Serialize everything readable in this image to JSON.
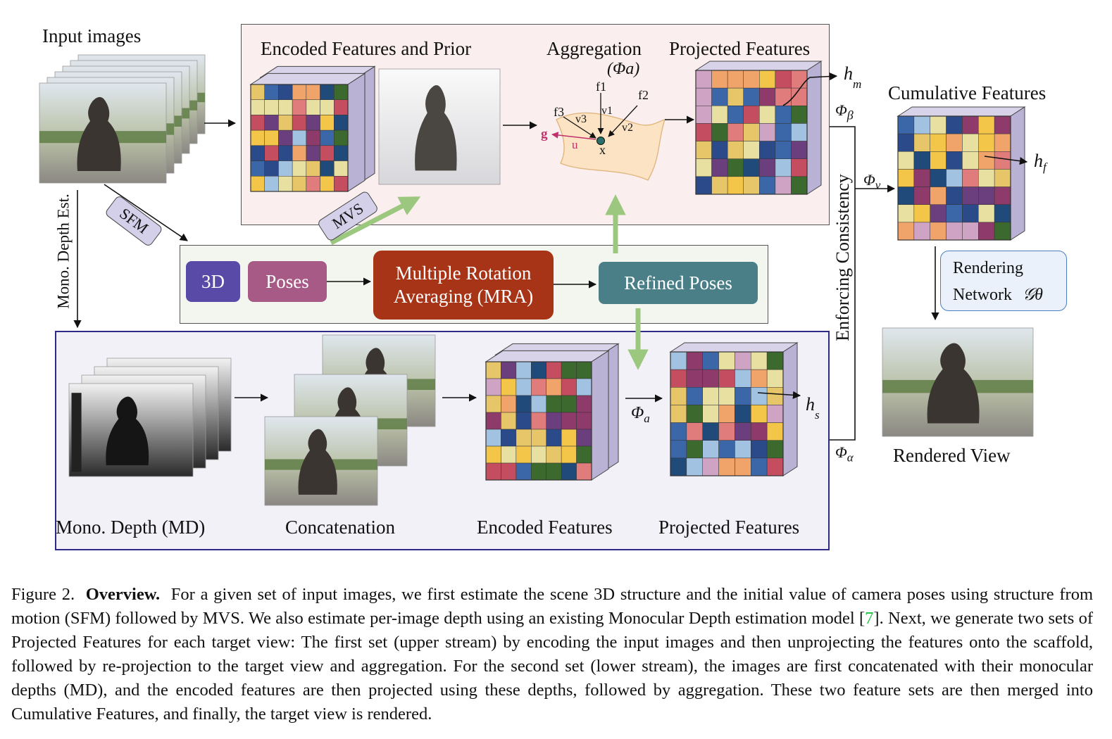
{
  "figure": {
    "labels": {
      "input_images": "Input images",
      "encoded_features_and_prior": "Encoded Features and Prior",
      "aggregation": "Aggregation",
      "aggregation_symbol": "(Φa)",
      "projected_features_top": "Projected Features",
      "cumulative_features": "Cumulative Features",
      "rendered_view": "Rendered View",
      "mono_depth_est": "Mono. Depth Est.",
      "sfm": "SFM",
      "mvs": "MVS",
      "enforcing_consistency": "Enforcing Consistency",
      "mono_depth_md": "Mono. Depth (MD)",
      "concatenation": "Concatenation",
      "encoded_features_bottom": "Encoded Features",
      "projected_features_bottom": "Projected Features"
    },
    "pills": {
      "p3d": "3D",
      "poses": "Poses",
      "mra": "Multiple Rotation Averaging (MRA)",
      "refined_poses": "Refined Poses"
    },
    "rendering_network": {
      "line1": "Rendering",
      "line2": "Network",
      "symbol": "𝒢θ"
    },
    "symbols": {
      "h_m": "h",
      "h_m_sub": "m",
      "h_f": "h",
      "h_f_sub": "f",
      "h_s": "h",
      "h_s_sub": "s",
      "phi_beta": "Φ",
      "phi_beta_sub": "β",
      "phi_v": "Φ",
      "phi_v_sub": "v",
      "phi_alpha": "Φ",
      "phi_alpha_sub": "α",
      "phi_a": "Φ",
      "phi_a_sub": "a"
    },
    "aggregation_diagram": {
      "f1": "f1",
      "f2": "f2",
      "f3": "f3",
      "v1": "v1",
      "v2": "v2",
      "v3": "v3",
      "g": "g",
      "u": "u",
      "x": "x"
    },
    "colors": {
      "pill_3d": "#5a4aa8",
      "pill_poses": "#a85a86",
      "pill_mra": "#a83417",
      "pill_refined": "#4a7f88",
      "green_arrow": "#9cc77f",
      "top_panel_bg": "#fbeeee",
      "bottom_panel_bg": "#f2f1f7",
      "middle_panel_bg": "#f3f6ef",
      "rendering_box_bg": "#eaf1fa",
      "rendering_box_border": "#4a7fc0",
      "bottom_panel_border": "#2f2a86",
      "grid_palette": [
        "#3b66a8",
        "#e7c66a",
        "#cfa3c4",
        "#c44e60",
        "#3c6a2e",
        "#2a4a8a",
        "#e7e0a0",
        "#8e3a6a",
        "#a2c2e2",
        "#f0a46a",
        "#6b3f7d",
        "#e07c7c",
        "#f3c64a",
        "#1f4a7a"
      ]
    }
  },
  "caption": {
    "prefix": "Figure 2.",
    "title": "Overview.",
    "text1": "For a given set of input images, we first estimate the scene 3D structure and the initial value of camera poses using structure from motion (SFM) followed by MVS. We also estimate per-image depth using an existing Monocular Depth estimation model [",
    "cite": "7",
    "text2": "]. Next, we generate two sets of Projected Features for each target view: The first set (upper stream) by encoding the input images and then unprojecting the features onto the scaffold, followed by re-projection to the target view and aggregation. For the second set (lower stream), the images are first concatenated with their monocular depths (MD), and the encoded features are then projected using these depths, followed by aggregation. These two feature sets are then merged into Cumulative Features, and finally, the target view is rendered."
  }
}
